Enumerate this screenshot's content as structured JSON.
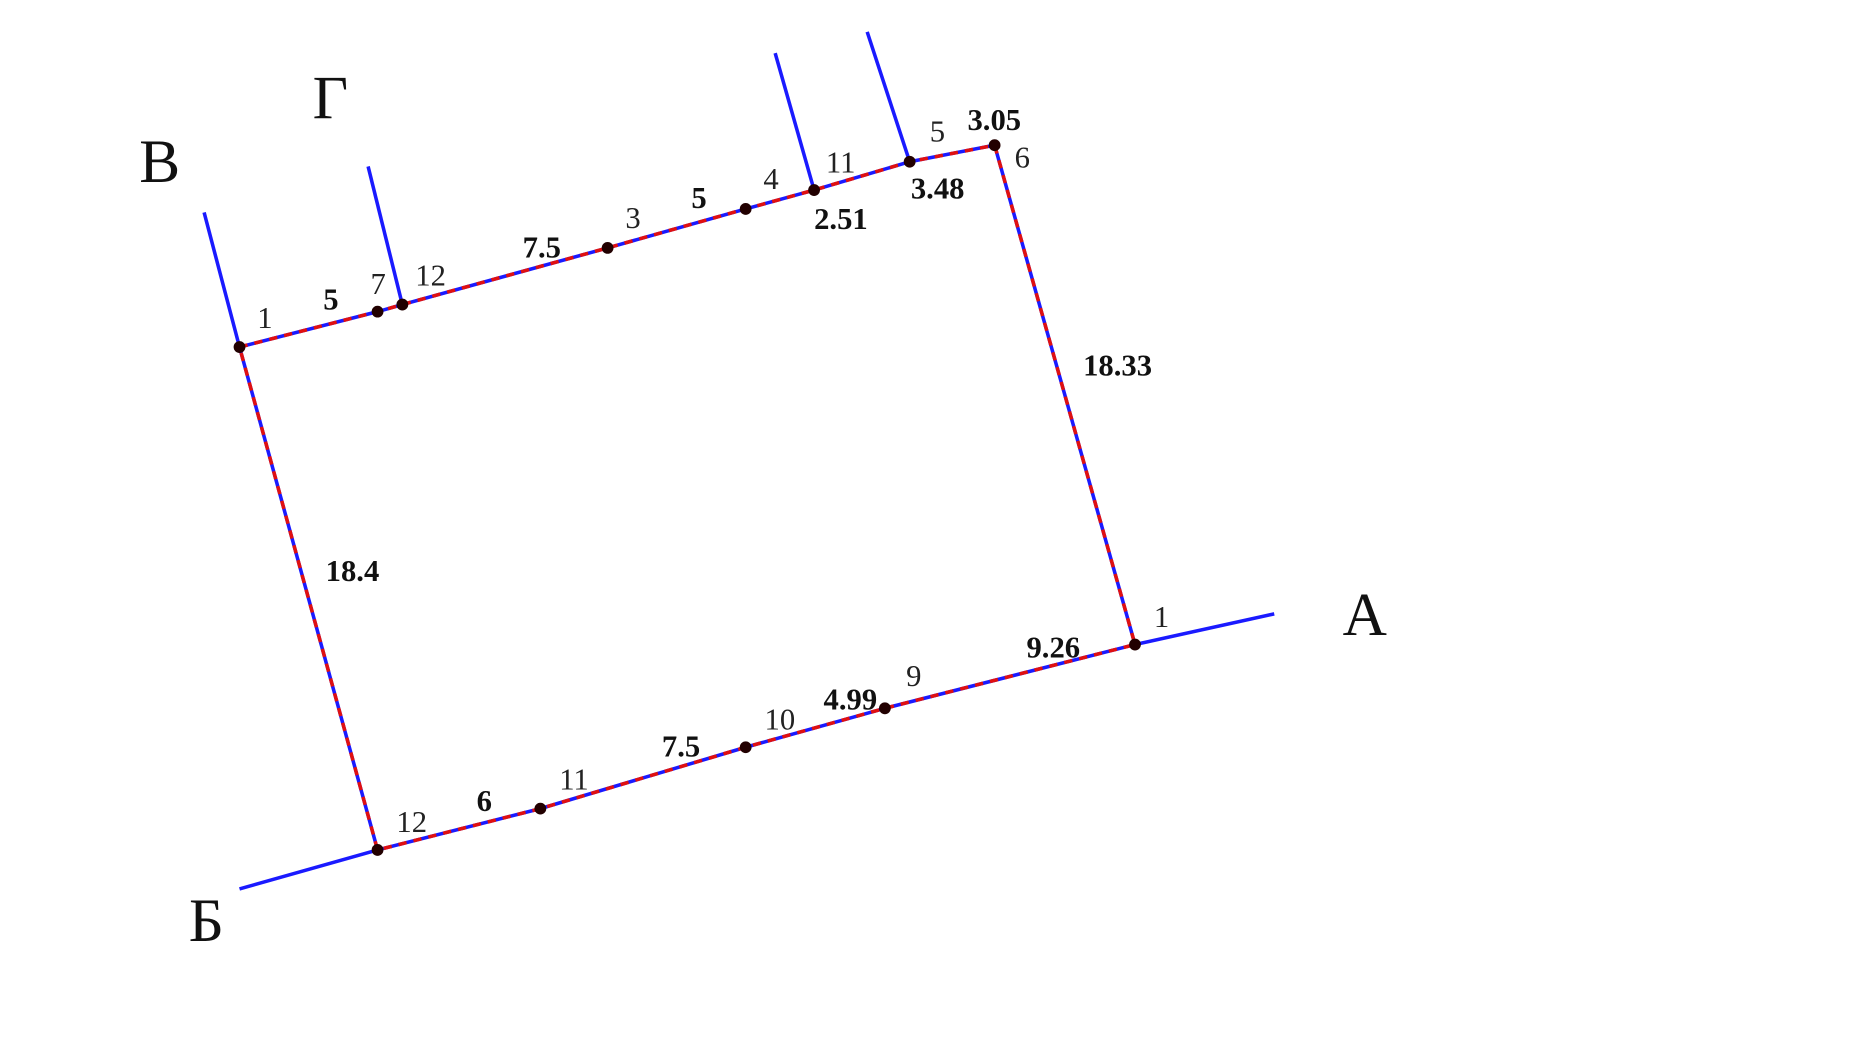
{
  "colors": {
    "boundary": "#e01010",
    "lines": "#1a1aff",
    "points": "#220000",
    "text": "#111111"
  },
  "letters": {
    "A": "А",
    "B": "Б",
    "V": "В",
    "G": "Г"
  },
  "top_edge": {
    "point_labels": [
      "1",
      "7",
      "12",
      "3",
      "4",
      "11",
      "5",
      "6"
    ],
    "lengths": [
      "5",
      "7.5",
      "5",
      "2.51",
      "3.48",
      "3.05"
    ]
  },
  "right_edge": {
    "length": "18.33"
  },
  "left_edge": {
    "length": "18.4"
  },
  "bottom_edge": {
    "point_labels": [
      "1",
      "9",
      "10",
      "11",
      "12"
    ],
    "lengths": [
      "9.26",
      "4.99",
      "7.5",
      "6"
    ]
  }
}
